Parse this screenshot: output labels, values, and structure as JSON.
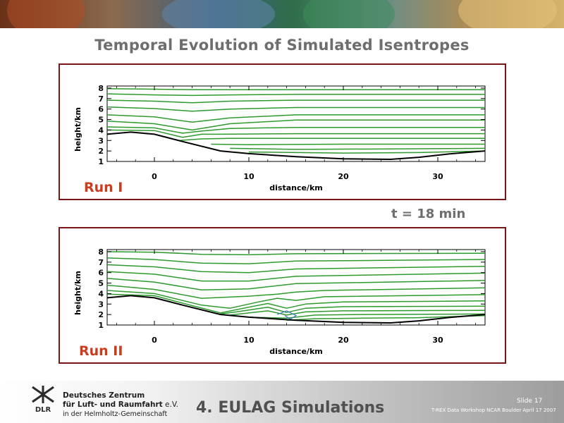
{
  "slide": {
    "title": "Temporal Evolution of Simulated Isentropes",
    "time_label": "t = 18 min",
    "footer_title": "4. EULAG Simulations",
    "slide_number": "Slide 17",
    "workshop": "T-REX Data Workshop NCAR Boulder April 17 2007",
    "institution_line1": "Deutsches Zentrum",
    "institution_line2": "für Luft- und Raumfahrt",
    "institution_ev": "e.V.",
    "institution_line3": "in der Helmholtz-Gemeinschaft",
    "logo_text": "DLR"
  },
  "colors": {
    "isentrope": "#2e9a2e",
    "terrain": "#000000",
    "frame": "#7a1616",
    "run_label": "#cc3b1e",
    "overturning": "#3a78c8"
  },
  "chart_data": [
    {
      "type": "line",
      "panel_label": "Run I",
      "xlabel": "distance/km",
      "ylabel": "height/km",
      "xlim": [
        -5,
        35
      ],
      "ylim": [
        1,
        8.2
      ],
      "x_ticks": [
        "0",
        "10",
        "20",
        "30"
      ],
      "y_ticks": [
        "1",
        "2",
        "3",
        "4",
        "5",
        "6",
        "7",
        "8"
      ],
      "terrain": {
        "x": [
          -5,
          -2.5,
          0,
          3,
          7,
          10,
          15,
          20,
          25,
          28,
          31,
          35
        ],
        "y": [
          3.6,
          3.8,
          3.6,
          2.9,
          2.0,
          1.75,
          1.45,
          1.25,
          1.2,
          1.4,
          1.7,
          2.0
        ]
      },
      "isentropes": [
        {
          "x": [
            -5,
            0,
            4,
            8,
            15,
            35
          ],
          "y": [
            7.95,
            7.9,
            7.85,
            7.85,
            7.85,
            7.85
          ]
        },
        {
          "x": [
            -5,
            0,
            4,
            8,
            15,
            35
          ],
          "y": [
            7.45,
            7.35,
            7.3,
            7.35,
            7.4,
            7.4
          ]
        },
        {
          "x": [
            -5,
            0,
            4,
            8,
            15,
            35
          ],
          "y": [
            6.85,
            6.75,
            6.6,
            6.75,
            6.85,
            6.85
          ]
        },
        {
          "x": [
            -5,
            0,
            4,
            8,
            15,
            35
          ],
          "y": [
            6.2,
            6.05,
            5.8,
            6.0,
            6.15,
            6.15
          ]
        },
        {
          "x": [
            -5,
            0,
            4,
            8,
            15,
            35
          ],
          "y": [
            5.45,
            5.25,
            4.75,
            5.15,
            5.45,
            5.45
          ]
        },
        {
          "x": [
            -5,
            0,
            4,
            8,
            15,
            35
          ],
          "y": [
            4.85,
            4.6,
            4.0,
            4.6,
            4.95,
            4.95
          ]
        },
        {
          "x": [
            -5,
            0,
            3,
            5,
            8,
            15,
            35
          ],
          "y": [
            4.3,
            4.2,
            3.7,
            3.9,
            4.15,
            4.25,
            4.25
          ]
        },
        {
          "x": [
            -5,
            0,
            3,
            5,
            7,
            15,
            35
          ],
          "y": [
            4.0,
            3.95,
            3.3,
            3.6,
            3.6,
            3.65,
            3.65
          ]
        },
        {
          "x": [
            2.5,
            5,
            8,
            15,
            35
          ],
          "y": [
            3.0,
            3.15,
            3.2,
            3.2,
            3.2
          ]
        },
        {
          "x": [
            6,
            10,
            20,
            35
          ],
          "y": [
            2.65,
            2.6,
            2.65,
            2.65
          ]
        },
        {
          "x": [
            8,
            15,
            25,
            35
          ],
          "y": [
            2.25,
            2.15,
            2.2,
            2.25
          ]
        },
        {
          "x": [
            10,
            20,
            28,
            35
          ],
          "y": [
            1.9,
            1.8,
            1.85,
            2.0
          ]
        }
      ]
    },
    {
      "type": "line",
      "panel_label": "Run II",
      "xlabel": "distance/km",
      "ylabel": "height/km",
      "xlim": [
        -5,
        35
      ],
      "ylim": [
        1,
        8.2
      ],
      "x_ticks": [
        "0",
        "10",
        "20",
        "30"
      ],
      "y_ticks": [
        "1",
        "2",
        "3",
        "4",
        "5",
        "6",
        "7",
        "8"
      ],
      "terrain": {
        "x": [
          -5,
          -2.5,
          0,
          3,
          7,
          10,
          15,
          20,
          25,
          28,
          31,
          35
        ],
        "y": [
          3.6,
          3.8,
          3.6,
          2.9,
          2.0,
          1.75,
          1.45,
          1.25,
          1.2,
          1.4,
          1.7,
          2.0
        ]
      },
      "isentropes": [
        {
          "x": [
            -5,
            0,
            5,
            10,
            15,
            35
          ],
          "y": [
            8.0,
            7.95,
            7.75,
            7.7,
            7.8,
            7.85
          ]
        },
        {
          "x": [
            -5,
            0,
            5,
            10,
            15,
            35
          ],
          "y": [
            7.4,
            7.25,
            6.9,
            6.85,
            7.1,
            7.25
          ]
        },
        {
          "x": [
            -5,
            0,
            5,
            10,
            15,
            35
          ],
          "y": [
            6.75,
            6.55,
            6.1,
            6.0,
            6.35,
            6.6
          ]
        },
        {
          "x": [
            -5,
            0,
            5,
            10,
            15,
            35
          ],
          "y": [
            6.1,
            5.85,
            5.2,
            5.2,
            5.65,
            5.95
          ]
        },
        {
          "x": [
            -5,
            0,
            5,
            10,
            15,
            35
          ],
          "y": [
            5.45,
            5.1,
            4.35,
            4.45,
            4.95,
            5.25
          ]
        },
        {
          "x": [
            -5,
            0,
            5,
            10,
            13,
            15,
            18,
            35
          ],
          "y": [
            4.8,
            4.4,
            3.55,
            3.75,
            3.95,
            4.15,
            4.3,
            4.55
          ]
        },
        {
          "x": [
            -5,
            0,
            5,
            8,
            11,
            13,
            15,
            18,
            35
          ],
          "y": [
            4.3,
            4.0,
            2.9,
            2.6,
            3.2,
            3.55,
            3.35,
            3.7,
            3.9
          ]
        },
        {
          "x": [
            -5,
            0,
            4,
            7,
            10,
            12,
            14,
            16,
            20,
            35
          ],
          "y": [
            3.95,
            3.8,
            2.85,
            2.15,
            2.7,
            3.05,
            2.6,
            3.0,
            3.2,
            3.3
          ]
        },
        {
          "x": [
            7,
            9,
            12,
            14,
            16,
            20,
            35
          ],
          "y": [
            2.05,
            2.3,
            2.7,
            2.2,
            2.6,
            2.75,
            2.8
          ]
        },
        {
          "x": [
            8,
            12,
            14,
            16,
            20,
            35
          ],
          "y": [
            1.95,
            2.35,
            1.95,
            2.25,
            2.35,
            2.4
          ]
        },
        {
          "x": [
            10,
            14,
            17,
            22,
            35
          ],
          "y": [
            1.75,
            1.65,
            1.95,
            2.0,
            2.05
          ]
        },
        {
          "x": [
            14,
            17,
            22,
            28,
            35
          ],
          "y": [
            1.45,
            1.6,
            1.65,
            1.7,
            1.9
          ]
        }
      ],
      "overturning": [
        {
          "x": [
            13,
            14,
            15,
            14.4,
            13.8
          ],
          "y": [
            2.0,
            2.35,
            1.9,
            1.55,
            1.9
          ]
        }
      ]
    }
  ]
}
